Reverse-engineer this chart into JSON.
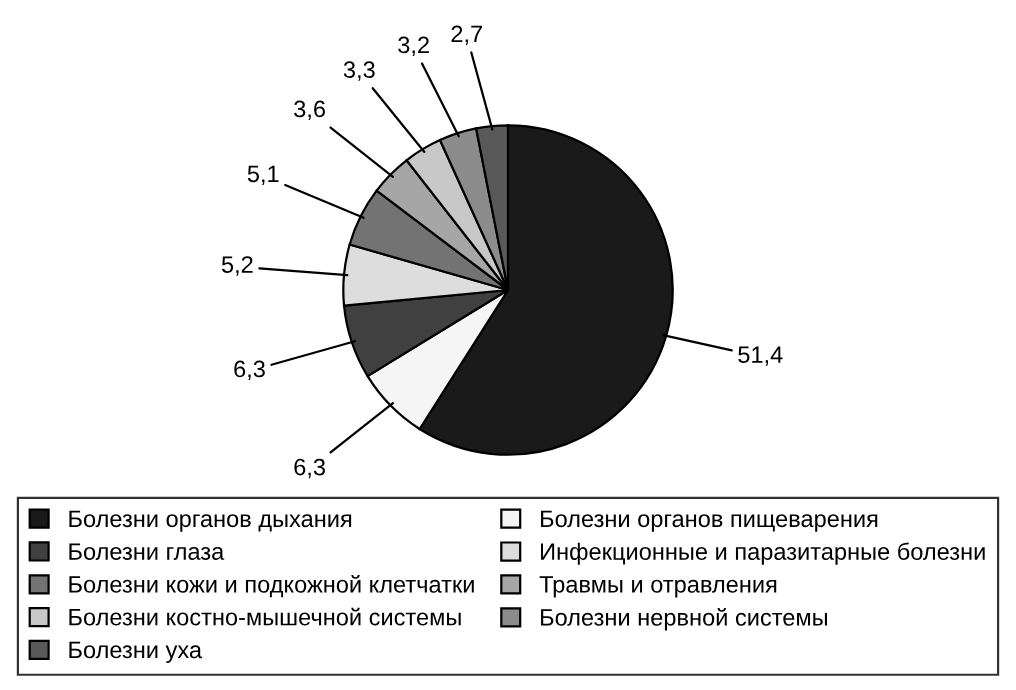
{
  "chart_data": {
    "type": "pie",
    "categories": [
      "Болезни органов дыхания",
      "Болезни органов пищеварения",
      "Болезни глаза",
      "Инфекционные и паразитарные болезни",
      "Болезни кожи и подкожной клетчатки",
      "Травмы и отравления",
      "Болезни костно-мышечной системы",
      "Болезни нервной системы",
      "Болезни уха"
    ],
    "values": [
      51.4,
      6.3,
      6.3,
      5.2,
      5.1,
      3.6,
      3.3,
      3.2,
      2.7
    ],
    "colors": [
      "#1a1a1a",
      "#f5f5f5",
      "#404040",
      "#dddddd",
      "#737373",
      "#a6a6a6",
      "#c8c8c8",
      "#8c8c8c",
      "#595959"
    ],
    "value_labels": [
      "51,4",
      "6,3",
      "6,3",
      "5,2",
      "5,1",
      "3,6",
      "3,3",
      "3,2",
      "2,7"
    ],
    "legend": "bottom"
  }
}
